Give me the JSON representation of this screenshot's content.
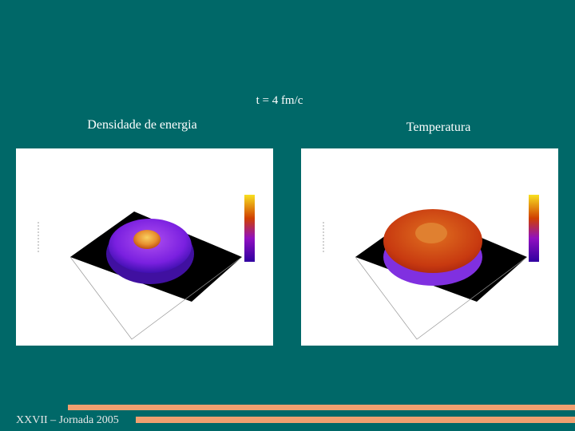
{
  "slide": {
    "title": "t = 4 fm/c",
    "panels": [
      {
        "label": "Densidade de energia"
      },
      {
        "label": "Temperatura"
      }
    ],
    "footer": "XXVII – Jornada 2005"
  }
}
